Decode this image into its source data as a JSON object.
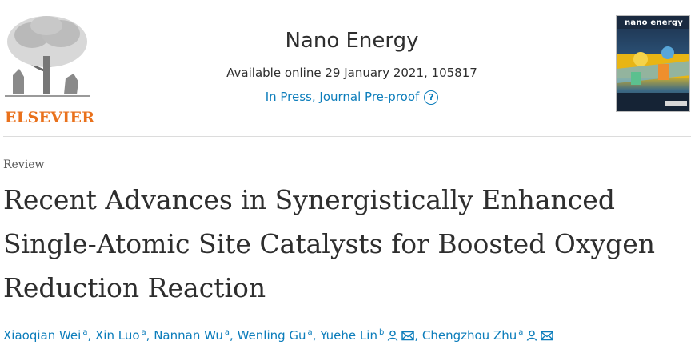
{
  "header": {
    "publisher": "ELSEVIER",
    "journal_name": "Nano Energy",
    "availability": "Available online 29 January 2021, 105817",
    "press_link": "In Press, Journal Pre-proof",
    "help_glyph": "?",
    "cover_title": "nano energy"
  },
  "article": {
    "type": "Review",
    "title": "Recent Advances in Synergistically Enhanced Single-Atomic Site Catalysts for Boosted Oxygen Reduction Reaction"
  },
  "authors": [
    {
      "name": "Xiaoqian Wei",
      "aff": "a",
      "icons": []
    },
    {
      "name": "Xin Luo",
      "aff": "a",
      "icons": []
    },
    {
      "name": "Nannan Wu",
      "aff": "a",
      "icons": []
    },
    {
      "name": "Wenling Gu",
      "aff": "a",
      "icons": []
    },
    {
      "name": "Yuehe Lin",
      "aff": "b",
      "icons": [
        "person-icon",
        "mail-icon"
      ]
    },
    {
      "name": "Chengzhou Zhu",
      "aff": "a",
      "icons": [
        "person-icon",
        "mail-icon"
      ]
    }
  ],
  "colors": {
    "link": "#0c7dbb",
    "publisher_orange": "#e9711c",
    "text": "#2e2e2e"
  }
}
